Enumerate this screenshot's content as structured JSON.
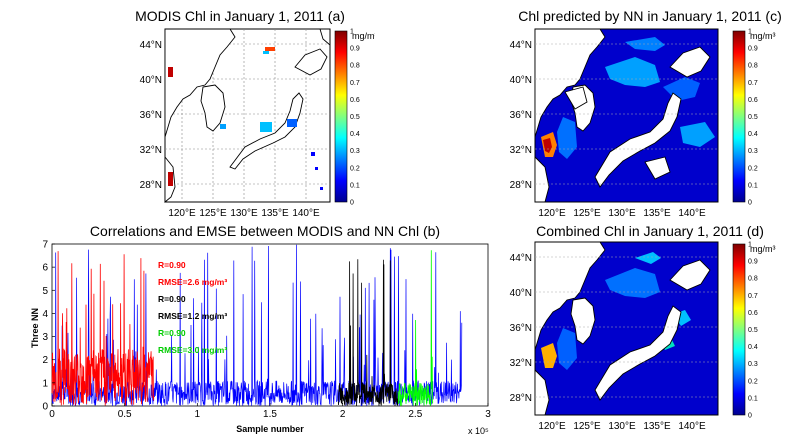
{
  "titles": {
    "a": "MODIS Chl in January 1, 2011 (a)",
    "b": "Correlations and EMSE between MODIS and NN Chl (b)",
    "c": "Chl predicted by NN in January 1, 2011 (c)",
    "d": "Combined Chl in January 1, 2011 (d)"
  },
  "map_axes": {
    "lat_labels": [
      "44°N",
      "40°N",
      "36°N",
      "32°N",
      "28°N"
    ],
    "lon_labels": [
      "120°E",
      "125°E",
      "130°E",
      "135°E",
      "140°E"
    ]
  },
  "colorbar": {
    "unit": "mg/m³",
    "ticks": [
      "1",
      "0.9",
      "0.8",
      "0.7",
      "0.6",
      "0.5",
      "0.4",
      "0.3",
      "0.2",
      "0.1",
      "0"
    ],
    "colors": [
      "#7f0000",
      "#ff0000",
      "#ff8000",
      "#ffff00",
      "#80ff80",
      "#00ffff",
      "#0080ff",
      "#0000ff",
      "#00008f"
    ]
  },
  "chart_data": {
    "type": "line",
    "title": "Correlations and EMSE between MODIS and NN Chl (b)",
    "xlabel": "Sample number",
    "ylabel": "Three NN",
    "x_multiplier": "x 10⁵",
    "xlim": [
      0,
      3
    ],
    "ylim": [
      0,
      7
    ],
    "xticks": [
      "0",
      "0.5",
      "1",
      "1.5",
      "2",
      "2.5",
      "3"
    ],
    "yticks": [
      "0",
      "1",
      "2",
      "3",
      "4",
      "5",
      "6",
      "7"
    ],
    "series": [
      {
        "range": [
          0,
          0.7
        ],
        "R": "R=0.90",
        "RMSE": "RMSE=2.6 mg/m³",
        "color": "#ff0000"
      },
      {
        "range": [
          1.97,
          2.38
        ],
        "R": "R=0.90",
        "RMSE": "RMSE=1.2 mg/m³",
        "color": "#000000"
      },
      {
        "range": [
          2.38,
          2.62
        ],
        "R": "R=0.90",
        "RMSE": "RMSE=3.0 mg/m³",
        "color": "#00ff00"
      }
    ],
    "background_color": "#0000ff"
  }
}
